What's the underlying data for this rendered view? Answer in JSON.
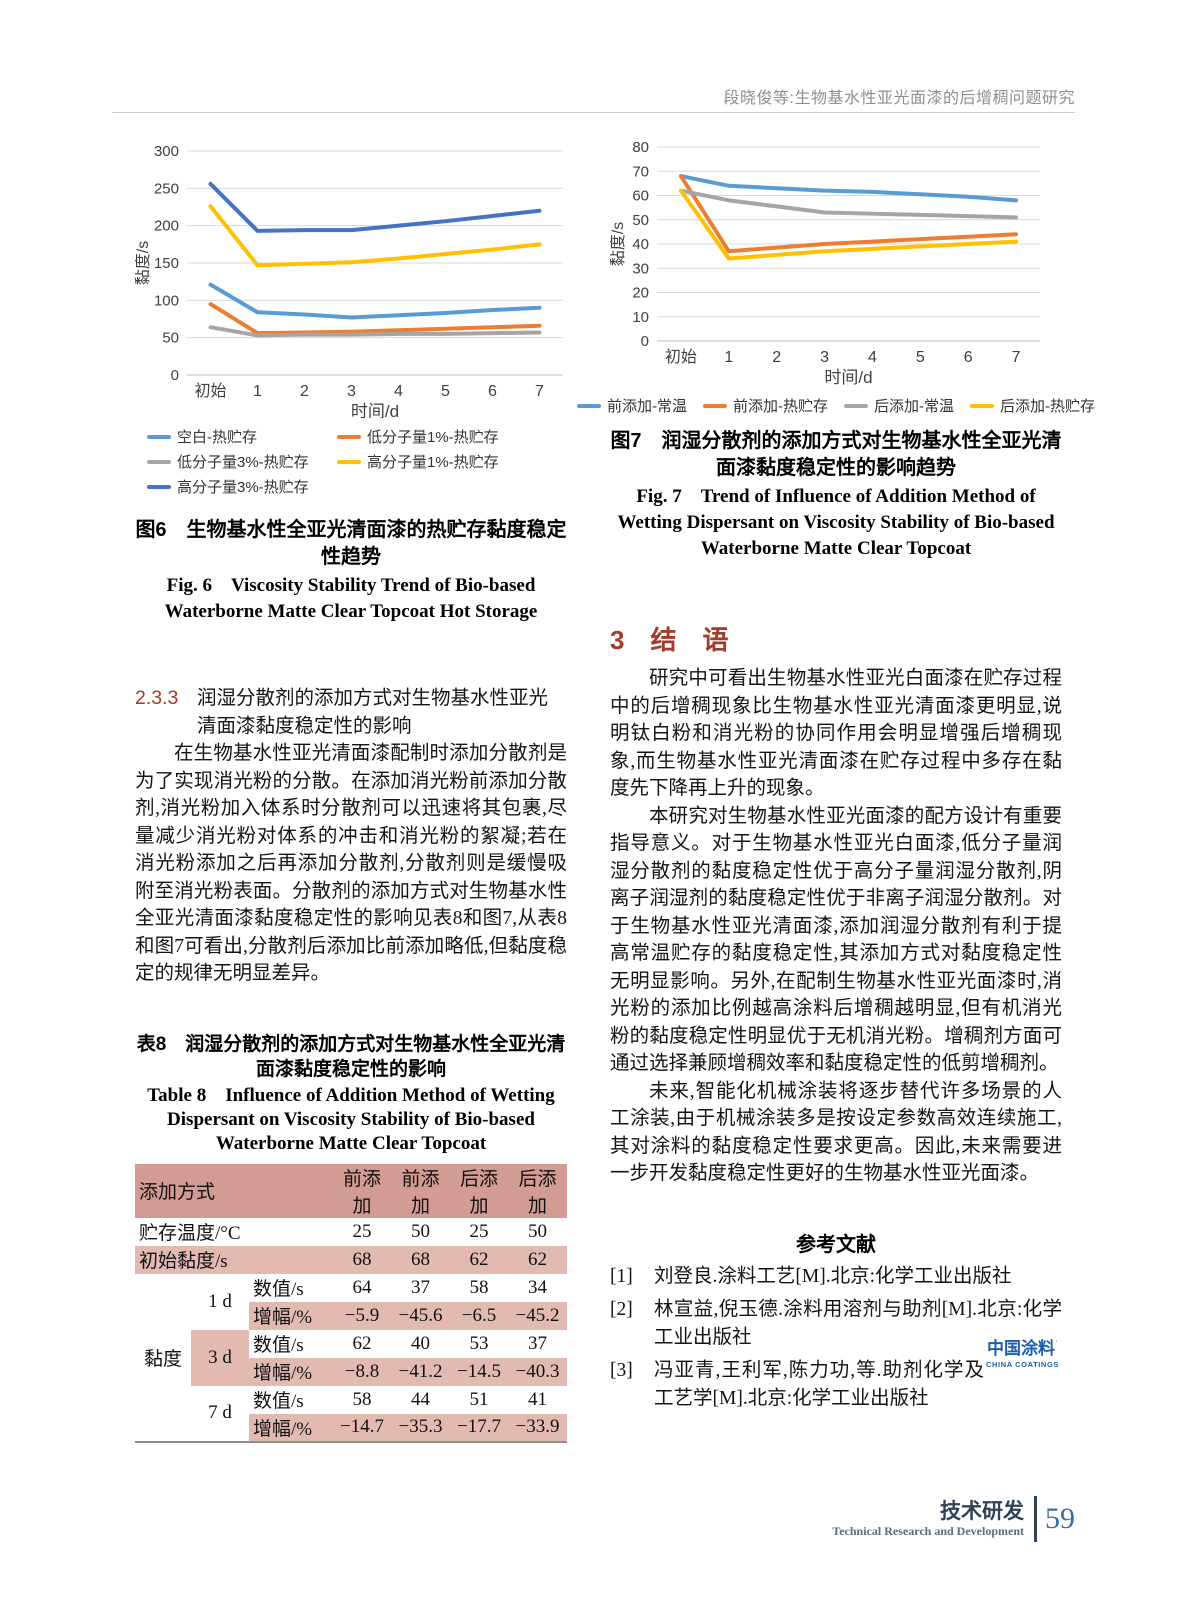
{
  "page": {
    "header_title": "段晓俊等:生物基水性亚光面漆的后增稠问题研究",
    "footer": {
      "section_zh": "技术研发",
      "section_en": "Technical Research and Development",
      "page_number": "59"
    },
    "logo": {
      "zh": "中国涂料",
      "en": "CHINA COATINGS"
    }
  },
  "colors": {
    "accent_red": "#A23B2A",
    "table_header_pink": "#D29B93",
    "table_row_pink": "#E3BAB2",
    "logo_blue": "#1C5FA8",
    "footer_navy": "#2E4358",
    "page_number_blue": "#3C6E9F",
    "grid_gray": "#D9D9D9"
  },
  "chart_data": [
    {
      "type": "line",
      "title_zh": "图6　生物基水性全亚光清面漆的热贮存黏度稳定性趋势",
      "title_en": "Fig. 6　Viscosity Stability Trend of Bio-based Waterborne Matte Clear Topcoat Hot Storage",
      "xlabel": "时间/d",
      "ylabel": "黏度/s",
      "categories": [
        "初始",
        "1",
        "2",
        "3",
        "4",
        "5",
        "6",
        "7"
      ],
      "ylim": [
        0,
        300
      ],
      "ytick_step": 50,
      "grid": true,
      "legend_position": "bottom",
      "series": [
        {
          "name": "空白-热贮存",
          "color": "#5B9BD5",
          "values": [
            121,
            84,
            81,
            77,
            80,
            83,
            87,
            90
          ]
        },
        {
          "name": "低分子量1%-热贮存",
          "color": "#ED7D31",
          "values": [
            95,
            56,
            57,
            58,
            60,
            62,
            64,
            66
          ]
        },
        {
          "name": "低分子量3%-热贮存",
          "color": "#A5A5A5",
          "values": [
            64,
            53,
            54,
            54,
            55,
            55,
            56,
            57
          ]
        },
        {
          "name": "高分子量1%-热贮存",
          "color": "#FFC000",
          "values": [
            226,
            147,
            149,
            151,
            156,
            162,
            168,
            175
          ]
        },
        {
          "name": "高分子量3%-热贮存",
          "color": "#4472C4",
          "values": [
            256,
            193,
            194,
            194,
            200,
            206,
            213,
            220
          ]
        }
      ]
    },
    {
      "type": "line",
      "title_zh": "图7　润湿分散剂的添加方式对生物基水性全亚光清面漆黏度稳定性的影响趋势",
      "title_en": "Fig. 7　Trend of Influence of Addition Method of Wetting Dispersant on Viscosity Stability of Bio-based Waterborne Matte Clear Topcoat",
      "xlabel": "时间/d",
      "ylabel": "黏度/s",
      "categories": [
        "初始",
        "1",
        "2",
        "3",
        "4",
        "5",
        "6",
        "7"
      ],
      "ylim": [
        0,
        80
      ],
      "ytick_step": 10,
      "grid": true,
      "legend_position": "bottom",
      "series": [
        {
          "name": "前添加-常温",
          "color": "#5B9BD5",
          "values": [
            68,
            64,
            63,
            62,
            61.5,
            60.5,
            59.5,
            58
          ]
        },
        {
          "name": "前添加-热贮存",
          "color": "#ED7D31",
          "values": [
            68,
            37,
            38.5,
            40,
            41,
            42,
            43,
            44
          ]
        },
        {
          "name": "后添加-常温",
          "color": "#A5A5A5",
          "values": [
            62,
            58,
            55.5,
            53,
            52.5,
            52,
            51.5,
            51
          ]
        },
        {
          "name": "后添加-热贮存",
          "color": "#FFC000",
          "values": [
            62,
            34,
            35.5,
            37,
            38,
            39,
            40,
            41
          ]
        }
      ]
    }
  ],
  "sections": {
    "s233": {
      "number": "2.3.3",
      "title": "润湿分散剂的添加方式对生物基水性亚光清面漆黏度稳定性的影响",
      "paragraph": "在生物基水性亚光清面漆配制时添加分散剂是为了实现消光粉的分散。在添加消光粉前添加分散剂,消光粉加入体系时分散剂可以迅速将其包裹,尽量减少消光粉对体系的冲击和消光粉的絮凝;若在消光粉添加之后再添加分散剂,分散剂则是缓慢吸附至消光粉表面。分散剂的添加方式对生物基水性全亚光清面漆黏度稳定性的影响见表8和图7,从表8和图7可看出,分散剂后添加比前添加略低,但黏度稳定的规律无明显差异。"
    },
    "s3": {
      "number": "3",
      "title": "结　语",
      "paragraphs": [
        "研究中可看出生物基水性亚光白面漆在贮存过程中的后增稠现象比生物基水性亚光清面漆更明显,说明钛白粉和消光粉的协同作用会明显增强后增稠现象,而生物基水性亚光清面漆在贮存过程中多存在黏度先下降再上升的现象。",
        "本研究对生物基水性亚光面漆的配方设计有重要指导意义。对于生物基水性亚光白面漆,低分子量润湿分散剂的黏度稳定性优于高分子量润湿分散剂,阴离子润湿剂的黏度稳定性优于非离子润湿分散剂。对于生物基水性亚光清面漆,添加润湿分散剂有利于提高常温贮存的黏度稳定性,其添加方式对黏度稳定性无明显影响。另外,在配制生物基水性亚光面漆时,消光粉的添加比例越高涂料后增稠越明显,但有机消光粉的黏度稳定性明显优于无机消光粉。增稠剂方面可通过选择兼顾增稠效率和黏度稳定性的低剪增稠剂。",
        "未来,智能化机械涂装将逐步替代许多场景的人工涂装,由于机械涂装多是按设定参数高效连续施工,其对涂料的黏度稳定性要求更高。因此,未来需要进一步开发黏度稳定性更好的生物基水性亚光面漆。"
      ]
    }
  },
  "table8": {
    "caption_zh": "表8　润湿分散剂的添加方式对生物基水性全亚光清面漆黏度稳定性的影响",
    "caption_en": "Table 8　Influence of Addition Method of Wetting Dispersant on Viscosity Stability of Bio-based Waterborne Matte Clear Topcoat",
    "col_headers": [
      "添加方式",
      "前添加",
      "前添加",
      "后添加",
      "后添加"
    ],
    "storage_temp_label": "贮存温度/°C",
    "storage_temp": [
      "25",
      "50",
      "25",
      "50"
    ],
    "initial_label": "初始黏度/s",
    "initial": [
      "68",
      "68",
      "62",
      "62"
    ],
    "group_label": "黏度",
    "value_label": "数值/s",
    "change_label": "增幅/%",
    "days": [
      {
        "day": "1 d",
        "values": [
          "64",
          "37",
          "58",
          "34"
        ],
        "changes": [
          "−5.9",
          "−45.6",
          "−6.5",
          "−45.2"
        ]
      },
      {
        "day": "3 d",
        "values": [
          "62",
          "40",
          "53",
          "37"
        ],
        "changes": [
          "−8.8",
          "−41.2",
          "−14.5",
          "−40.3"
        ]
      },
      {
        "day": "7 d",
        "values": [
          "58",
          "44",
          "51",
          "41"
        ],
        "changes": [
          "−14.7",
          "−35.3",
          "−17.7",
          "−33.9"
        ]
      }
    ]
  },
  "references": {
    "heading": "参考文献",
    "items": [
      {
        "num": "[1]",
        "text": "刘登良.涂料工艺[M].北京:化学工业出版社"
      },
      {
        "num": "[2]",
        "text": "林宣益,倪玉德.涂料用溶剂与助剂[M].北京:化学工业出版社"
      },
      {
        "num": "[3]",
        "text": "冯亚青,王利军,陈力功,等.助剂化学及工艺学[M].北京:化学工业出版社"
      }
    ]
  }
}
